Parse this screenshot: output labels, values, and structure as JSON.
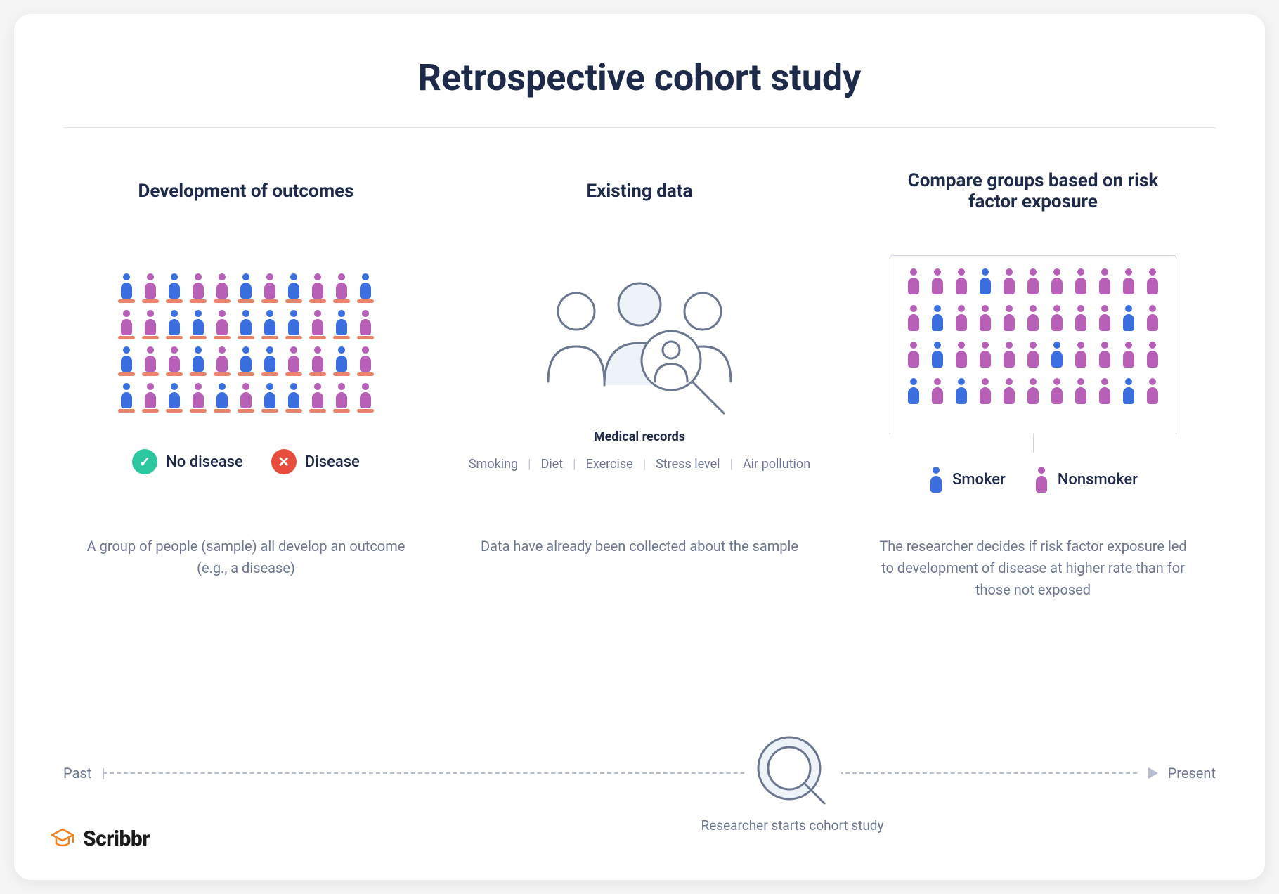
{
  "title": "Retrospective cohort study",
  "colors": {
    "text_dark": "#1e2a4a",
    "text_muted": "#6b7690",
    "blue": "#3b6fe0",
    "purple": "#b85fb8",
    "base_red": "#e9856a",
    "badge_green": "#2bc8a0",
    "badge_red": "#e74c3c",
    "line_gray": "#b6becf",
    "illus_stroke": "#6b7690",
    "illus_fill": "#eef2f9",
    "logo_orange": "#f58220"
  },
  "columns": {
    "left": {
      "title": "Development of outcomes",
      "people_pattern": [
        "b",
        "p",
        "b",
        "p",
        "p",
        "b",
        "p",
        "b",
        "p",
        "p",
        "b",
        "p",
        "p",
        "b",
        "b",
        "p",
        "b",
        "b",
        "b",
        "p",
        "b",
        "p",
        "b",
        "p",
        "p",
        "b",
        "p",
        "b",
        "b",
        "p",
        "p",
        "b",
        "p",
        "b",
        "p",
        "b",
        "p",
        "b",
        "p",
        "b",
        "b",
        "p",
        "p",
        "p"
      ],
      "legend": [
        {
          "icon": "check",
          "label": "No disease",
          "bg_key": "badge_green"
        },
        {
          "icon": "cross",
          "label": "Disease",
          "bg_key": "badge_red"
        }
      ],
      "description": "A group of people (sample) all develop an outcome (e.g., a disease)"
    },
    "middle": {
      "title": "Existing data",
      "records_title": "Medical records",
      "records": [
        "Smoking",
        "Diet",
        "Exercise",
        "Stress level",
        "Air pollution"
      ],
      "description": "Data have already been collected about the sample"
    },
    "right": {
      "title": "Compare groups based on risk factor exposure",
      "people_pattern": [
        "p",
        "p",
        "p",
        "b",
        "p",
        "p",
        "p",
        "p",
        "p",
        "p",
        "p",
        "p",
        "b",
        "p",
        "p",
        "p",
        "p",
        "p",
        "p",
        "p",
        "b",
        "p",
        "p",
        "b",
        "p",
        "p",
        "p",
        "p",
        "b",
        "p",
        "p",
        "p",
        "p",
        "b",
        "p",
        "b",
        "p",
        "p",
        "p",
        "p",
        "p",
        "p",
        "b",
        "p"
      ],
      "legend": [
        {
          "color_key": "blue",
          "label": "Smoker"
        },
        {
          "color_key": "purple",
          "label": "Nonsmoker"
        }
      ],
      "description": "The researcher decides if risk factor exposure led to development of disease at higher rate than for those not exposed"
    }
  },
  "timeline": {
    "left_label": "Past",
    "right_label": "Present",
    "marker_label": "Researcher starts cohort study"
  },
  "logo": {
    "text": "Scribbr"
  }
}
